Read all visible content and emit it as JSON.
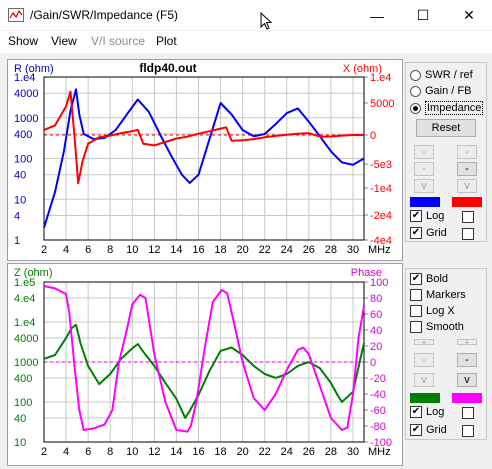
{
  "window": {
    "title": "/Gain/SWR/Impedance (F5)",
    "minimize_glyph": "—",
    "maximize_glyph": "☐",
    "close_glyph": "✕"
  },
  "menu": [
    "Show",
    "View",
    "V/I source",
    "Plot"
  ],
  "top_panel": {
    "radios": [
      {
        "label": "SWR / ref",
        "selected": false
      },
      {
        "label": "Gain / FB",
        "selected": false
      },
      {
        "label": "Impedance",
        "selected": true
      }
    ],
    "reset_label": "Reset",
    "scale_buttons": [
      "-",
      "-",
      "-",
      "-",
      "v",
      "v"
    ],
    "left_color": "#0000ff",
    "right_color": "#ff0000",
    "log_label": "Log",
    "grid_label": "Grid"
  },
  "bottom_panel": {
    "checks": [
      {
        "label": "Bold",
        "checked": true
      },
      {
        "label": "Markers",
        "checked": false
      },
      {
        "label": "Log X",
        "checked": false
      },
      {
        "label": "Smooth",
        "checked": false
      }
    ],
    "scale_buttons": [
      "+",
      "+",
      "-",
      "-",
      "v",
      "v"
    ],
    "left_color": "#008000",
    "right_color": "#ff00ff",
    "log_label": "Log",
    "grid_label": "Grid"
  },
  "chart_data": [
    {
      "type": "line",
      "title": "fldp40.out",
      "ylabel": "R (ohm)",
      "y2label": "X (ohm)",
      "xunit": "MHz",
      "xlim": [
        2,
        31
      ],
      "x_ticks": [
        "2",
        "4",
        "6",
        "8",
        "10",
        "12",
        "14",
        "16",
        "18",
        "20",
        "22",
        "24",
        "26",
        "28",
        "30"
      ],
      "yscale": "log",
      "ylim": [
        1,
        10000
      ],
      "y_ticks": [
        "1",
        "4",
        "10",
        "40",
        "100",
        "400",
        "1000",
        "4000",
        "1.e4"
      ],
      "y2lim": [
        -40000,
        10000
      ],
      "y2_ticks": [
        "1.e4",
        "5000",
        "0",
        "-5e3",
        "-1e4",
        "-2e4",
        "-4e4"
      ],
      "grid": true,
      "series": [
        {
          "name": "R",
          "color": "#0000ff",
          "x": [
            2,
            3,
            3.8,
            4.4,
            4.9,
            5.2,
            5.6,
            6.5,
            7.5,
            8.5,
            9.5,
            10.5,
            11.5,
            12.5,
            13.5,
            14.5,
            15.2,
            16,
            17,
            18,
            19,
            20,
            21,
            22,
            23,
            24,
            25,
            26,
            27,
            28,
            29,
            30,
            31
          ],
          "y": [
            2,
            15,
            150,
            1500,
            5000,
            1200,
            400,
            300,
            320,
            500,
            1200,
            2800,
            1400,
            400,
            120,
            40,
            25,
            40,
            300,
            2300,
            1200,
            500,
            350,
            400,
            700,
            1300,
            1700,
            800,
            350,
            150,
            80,
            70,
            100
          ]
        },
        {
          "name": "X",
          "color": "#ff0000",
          "x": [
            2,
            3,
            4,
            4.4,
            4.8,
            5.1,
            5.5,
            6,
            7,
            8,
            9,
            10,
            10.5,
            11,
            12,
            13,
            14,
            15,
            16,
            17,
            18,
            18.5,
            19,
            20,
            21,
            22,
            23,
            24,
            25,
            26,
            27,
            28,
            29,
            30,
            31
          ],
          "y": [
            800,
            1500,
            4500,
            7200,
            -1000,
            -9000,
            -4500,
            -1500,
            -400,
            -100,
            300,
            600,
            800,
            -1500,
            -1800,
            -1200,
            -600,
            -300,
            200,
            600,
            1000,
            1200,
            -1000,
            -900,
            -700,
            -400,
            -150,
            50,
            200,
            300,
            -300,
            -250,
            -100,
            0,
            0
          ]
        }
      ]
    },
    {
      "type": "line",
      "title": "",
      "ylabel": "Z (ohm)",
      "y2label": "Phase",
      "xunit": "MHz",
      "xlim": [
        2,
        31
      ],
      "x_ticks": [
        "2",
        "4",
        "6",
        "8",
        "10",
        "12",
        "14",
        "16",
        "18",
        "20",
        "22",
        "24",
        "26",
        "28",
        "30"
      ],
      "yscale": "log",
      "ylim": [
        10,
        100000
      ],
      "y_ticks": [
        "10",
        "40",
        "100",
        "400",
        "1000",
        "4000",
        "1.e4",
        "4.e4",
        "1.e5"
      ],
      "y2lim": [
        -100,
        100
      ],
      "y2_ticks": [
        "100",
        "80",
        "60",
        "40",
        "20",
        "0",
        "-20",
        "-40",
        "-60",
        "-80",
        "-100"
      ],
      "grid": true,
      "series": [
        {
          "name": "Z",
          "color": "#008000",
          "x": [
            2,
            3,
            4,
            4.5,
            4.9,
            5.3,
            6,
            7,
            8,
            9,
            10,
            10.5,
            11,
            12,
            13,
            14,
            14.8,
            15.2,
            16,
            17,
            18,
            19,
            20,
            21,
            22,
            23,
            24,
            25,
            26,
            27,
            28,
            28.6,
            29,
            30,
            31
          ],
          "y": [
            1200,
            1500,
            4000,
            7000,
            8500,
            3000,
            800,
            280,
            500,
            1200,
            2200,
            2800,
            1800,
            800,
            300,
            120,
            40,
            60,
            150,
            600,
            1900,
            2300,
            1500,
            800,
            500,
            400,
            500,
            800,
            1000,
            700,
            300,
            150,
            100,
            180,
            3000
          ]
        },
        {
          "name": "Phase",
          "color": "#ff00ff",
          "x": [
            2,
            3,
            4,
            4.3,
            4.8,
            5.2,
            5.6,
            6.5,
            7.5,
            8.2,
            8.8,
            9.5,
            10,
            10.7,
            11.2,
            12,
            13,
            14,
            15,
            15.3,
            15.8,
            16.6,
            17.3,
            18.1,
            18.6,
            19.2,
            20,
            21,
            22,
            23,
            24,
            25,
            25.5,
            26,
            27,
            28,
            29,
            29.5,
            30,
            30.5,
            31
          ],
          "y": [
            95,
            92,
            85,
            60,
            -10,
            -60,
            -85,
            -83,
            -78,
            -60,
            0,
            40,
            72,
            84,
            80,
            10,
            -50,
            -85,
            -87,
            -80,
            -50,
            20,
            75,
            90,
            86,
            50,
            0,
            -45,
            -60,
            -40,
            -10,
            15,
            18,
            10,
            -30,
            -70,
            -85,
            -82,
            -40,
            30,
            70
          ]
        }
      ]
    }
  ]
}
